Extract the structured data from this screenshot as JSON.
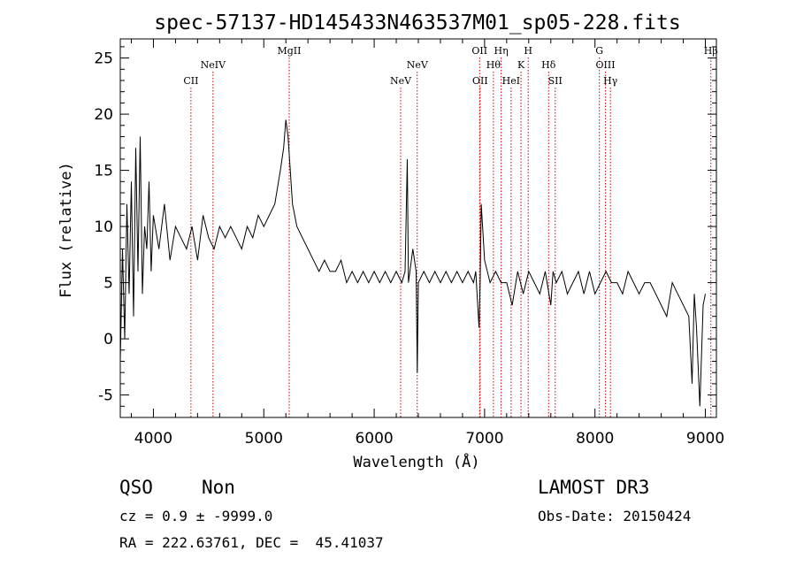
{
  "chart_data": {
    "type": "line",
    "title": "spec-57137-HD145433N463537M01_sp05-228.fits",
    "xlabel": "Wavelength (Å)",
    "ylabel": "Flux (relative)",
    "xlim": [
      3700,
      9100
    ],
    "ylim": [
      -7,
      26.7
    ],
    "xticks": [
      4000,
      5000,
      6000,
      7000,
      8000,
      9000
    ],
    "yticks": [
      -5,
      0,
      5,
      10,
      15,
      20,
      25
    ],
    "series": [
      {
        "name": "flux",
        "x": [
          3700,
          3720,
          3740,
          3760,
          3780,
          3800,
          3820,
          3840,
          3860,
          3880,
          3900,
          3920,
          3940,
          3960,
          3980,
          4000,
          4050,
          4100,
          4150,
          4200,
          4250,
          4300,
          4350,
          4400,
          4450,
          4500,
          4550,
          4600,
          4650,
          4700,
          4750,
          4800,
          4850,
          4900,
          4950,
          5000,
          5050,
          5100,
          5150,
          5180,
          5200,
          5220,
          5240,
          5260,
          5300,
          5350,
          5400,
          5450,
          5500,
          5550,
          5600,
          5650,
          5700,
          5750,
          5800,
          5850,
          5900,
          5950,
          6000,
          6050,
          6100,
          6150,
          6200,
          6250,
          6280,
          6300,
          6310,
          6350,
          6380,
          6390,
          6400,
          6450,
          6500,
          6550,
          6600,
          6650,
          6700,
          6750,
          6800,
          6850,
          6900,
          6920,
          6950,
          6960,
          6970,
          7000,
          7050,
          7100,
          7150,
          7200,
          7250,
          7300,
          7350,
          7400,
          7450,
          7500,
          7550,
          7600,
          7620,
          7650,
          7700,
          7750,
          7800,
          7850,
          7900,
          7950,
          8000,
          8050,
          8100,
          8150,
          8200,
          8250,
          8300,
          8350,
          8400,
          8450,
          8500,
          8550,
          8600,
          8650,
          8700,
          8750,
          8800,
          8850,
          8880,
          8900,
          8920,
          8950,
          8980,
          9000
        ],
        "y": [
          -2,
          8,
          0,
          12,
          4,
          14,
          2,
          17,
          6,
          18,
          4,
          10,
          8,
          14,
          6,
          11,
          8,
          12,
          7,
          10,
          9,
          8,
          10,
          7,
          11,
          9,
          8,
          10,
          9,
          10,
          9,
          8,
          10,
          9,
          11,
          10,
          11,
          12,
          15,
          17,
          19.5,
          18,
          15,
          12,
          10,
          9,
          8,
          7,
          6,
          7,
          6,
          6,
          7,
          5,
          6,
          5,
          6,
          5,
          6,
          5,
          6,
          5,
          6,
          5,
          6,
          16,
          5,
          8,
          6,
          -3,
          5,
          6,
          5,
          6,
          5,
          6,
          5,
          6,
          5,
          6,
          5,
          6,
          1,
          5,
          12,
          7,
          5,
          6,
          5,
          5,
          3,
          6,
          4,
          6,
          5,
          4,
          6,
          3,
          6,
          5,
          6,
          4,
          5,
          6,
          4,
          6,
          4,
          5,
          6,
          5,
          5,
          4,
          6,
          5,
          4,
          5,
          5,
          4,
          3,
          2,
          5,
          4,
          3,
          2,
          -4,
          4,
          1,
          -6,
          3,
          4
        ]
      }
    ],
    "lines": [
      {
        "label": "CII",
        "x": 4340,
        "row": 3
      },
      {
        "label": "NeIV",
        "x": 4540,
        "row": 2
      },
      {
        "label": "MgII",
        "x": 5230,
        "row": 1
      },
      {
        "label": "NeV",
        "x": 6240,
        "row": 3
      },
      {
        "label": "NeV",
        "x": 6390,
        "row": 2
      },
      {
        "label": "OII",
        "x": 6955,
        "row": 1
      },
      {
        "label": "OII",
        "x": 6960,
        "row": 3
      },
      {
        "label": "Hθ",
        "x": 7080,
        "row": 2
      },
      {
        "label": "Hη",
        "x": 7150,
        "row": 1
      },
      {
        "label": "HeI",
        "x": 7240,
        "row": 3
      },
      {
        "label": "K",
        "x": 7330,
        "row": 2
      },
      {
        "label": "H",
        "x": 7395,
        "row": 1
      },
      {
        "label": "Hδ",
        "x": 7580,
        "row": 2
      },
      {
        "label": "SII",
        "x": 7640,
        "row": 3
      },
      {
        "label": "G",
        "x": 8040,
        "row": 1
      },
      {
        "label": "OIII",
        "x": 8095,
        "row": 2
      },
      {
        "label": "Hγ",
        "x": 8140,
        "row": 3
      },
      {
        "label": "Hβ",
        "x": 9050,
        "row": 1
      }
    ]
  },
  "info": {
    "class": "QSO",
    "subclass": "Non",
    "survey": "LAMOST DR3",
    "cz": "cz = 0.9 ± -9999.0",
    "obs_date": "Obs-Date: 20150424",
    "coords": "RA = 222.63761, DEC =  45.41037"
  },
  "colors": {
    "axes": "#000000",
    "line_marker": "#cc0000"
  }
}
